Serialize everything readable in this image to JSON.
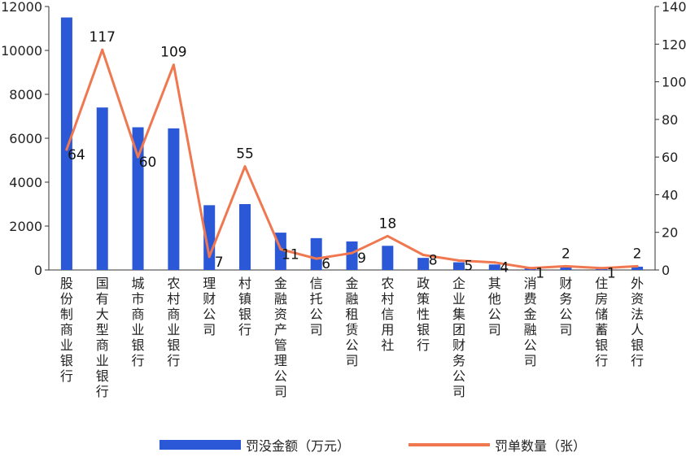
{
  "chart_data": {
    "type": "bar",
    "categories": [
      "股份制商业银行",
      "国有大型商业银行",
      "城市商业银行",
      "农村商业银行",
      "理财公司",
      "村镇银行",
      "金融资产管理公司",
      "信托公司",
      "金融租赁公司",
      "农村信用社",
      "政策性银行",
      "企业集团财务公司",
      "其他公司",
      "消费金融公司",
      "财务公司",
      "住房储蓄银行",
      "外资法人银行"
    ],
    "series": [
      {
        "name": "罚没金额（万元）",
        "type": "bar",
        "axis": "left",
        "color": "#2b58d6",
        "values": [
          11500,
          7400,
          6500,
          6450,
          2950,
          3000,
          1700,
          1450,
          1300,
          1100,
          550,
          350,
          250,
          80,
          150,
          80,
          150
        ]
      },
      {
        "name": "罚单数量（张）",
        "type": "line",
        "axis": "right",
        "color": "#f07850",
        "values": [
          64,
          117,
          60,
          109,
          7,
          55,
          11,
          6,
          9,
          18,
          8,
          5,
          4,
          1,
          2,
          1,
          2
        ],
        "labels": [
          "64",
          "117",
          "60",
          "109",
          "7",
          "55",
          "11",
          "6",
          "9",
          "18",
          "8",
          "5",
          "4",
          "1",
          "2",
          "1",
          "2"
        ]
      }
    ],
    "y_left": {
      "lim": [
        0,
        12000
      ],
      "ticks": [
        "0",
        "2000",
        "4000",
        "6000",
        "8000",
        "10000",
        "12000"
      ]
    },
    "y_right": {
      "lim": [
        0,
        140
      ],
      "ticks": [
        "0",
        "20",
        "40",
        "60",
        "80",
        "100",
        "120",
        "140"
      ]
    },
    "grid": false,
    "legend": "bottom"
  }
}
